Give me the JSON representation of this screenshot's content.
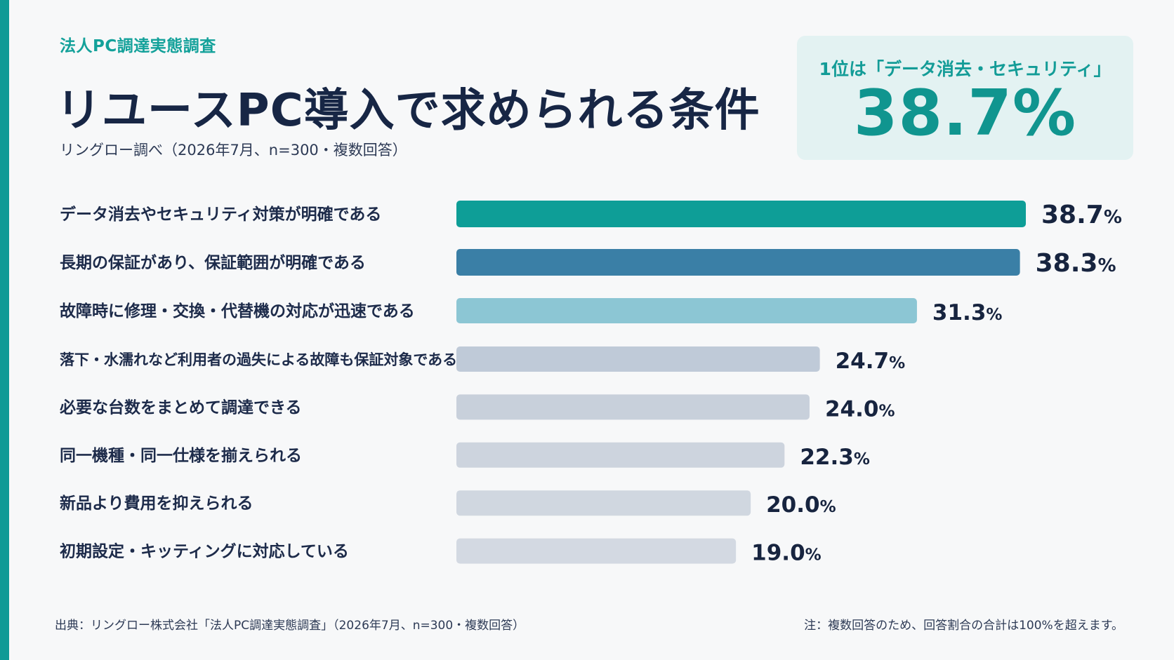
{
  "kicker": "法人PC調達実態調査",
  "title": "リユースPC導入で求められる条件",
  "subtitle": "リングロー調べ（2026年7月、n=300・複数回答）",
  "highlight": {
    "label": "1位は「データ消去・セキュリティ」",
    "value": "38.7%"
  },
  "footer": {
    "source": "出典：リングロー株式会社「法人PC調達実態調査」（2026年7月、n=300・複数回答）",
    "note": "注：複数回答のため、回答割合の合計は100%を超えます。"
  },
  "chart_data": {
    "type": "bar",
    "orientation": "horizontal",
    "title": "リユースPC導入で求められる条件",
    "categories": [
      "データ消去やセキュリティ対策が明確である",
      "長期の保証があり、保証範囲が明確である",
      "故障時に修理・交換・代替機の対応が迅速である",
      "落下・水濡れなど利用者の過失による故障も保証対象である",
      "必要な台数をまとめて調達できる",
      "同一機種・同一仕様を揃えられる",
      "新品より費用を抑えられる",
      "初期設定・キッティングに対応している"
    ],
    "values": [
      38.7,
      38.3,
      31.3,
      24.7,
      24.0,
      22.3,
      20.0,
      19.0
    ],
    "labels": [
      "38.7",
      "38.3",
      "31.3",
      "24.7",
      "24.0",
      "22.3",
      "20.0",
      "19.0"
    ],
    "unit": "%",
    "bar_colors": [
      "#0e9e97",
      "#3a7fa6",
      "#8cc6d4",
      "#bfcad8",
      "#c8d0db",
      "#cdd4de",
      "#d0d7e0",
      "#d3d9e2"
    ],
    "label_colors": [
      "#17243f",
      "#17243f",
      "#17243f",
      "#17243f",
      "#17243f",
      "#17243f",
      "#17243f",
      "#17243f"
    ],
    "xlim": [
      0,
      38.7
    ],
    "grid": false,
    "legend": "none"
  }
}
